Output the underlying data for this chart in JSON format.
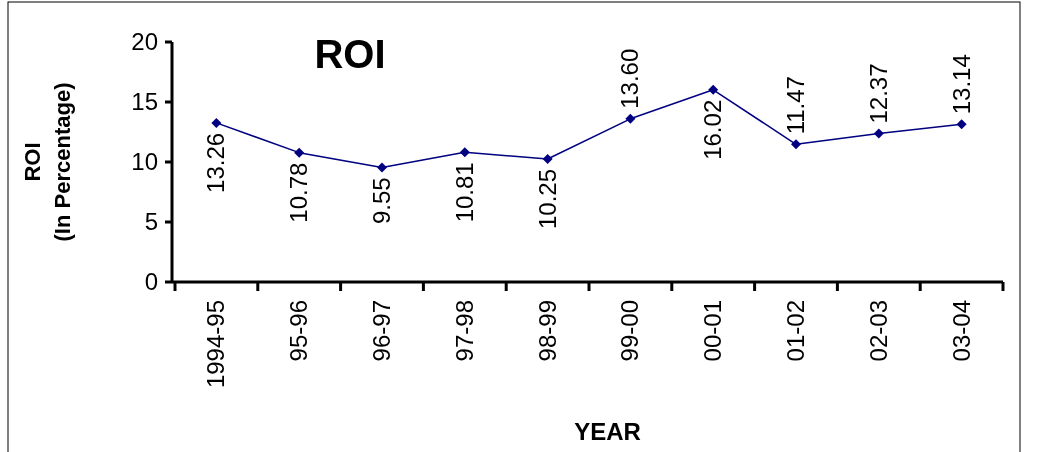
{
  "chart_data": {
    "type": "line",
    "title": "ROI",
    "xlabel": "YEAR",
    "ylabel": "ROI\n(In Percentage)",
    "categories": [
      "1994-95",
      "95-96",
      "96-97",
      "97-98",
      "98-99",
      "99-00",
      "00-01",
      "01-02",
      "02-03",
      "03-04"
    ],
    "series": [
      {
        "color": "#000080",
        "values": [
          13.26,
          10.78,
          9.55,
          10.81,
          10.25,
          13.6,
          16.02,
          11.47,
          12.37,
          13.14
        ],
        "value_labels": [
          "13.26",
          "10.78",
          "9.55",
          "10.81",
          "10.25",
          "13.60",
          "16.02",
          "11.47",
          "12.37",
          "13.14"
        ]
      }
    ],
    "ylim": [
      0,
      20
    ],
    "yticks": [
      0,
      5,
      10,
      15,
      20
    ],
    "marker": "diamond",
    "line_style": "solid",
    "grid": false
  }
}
